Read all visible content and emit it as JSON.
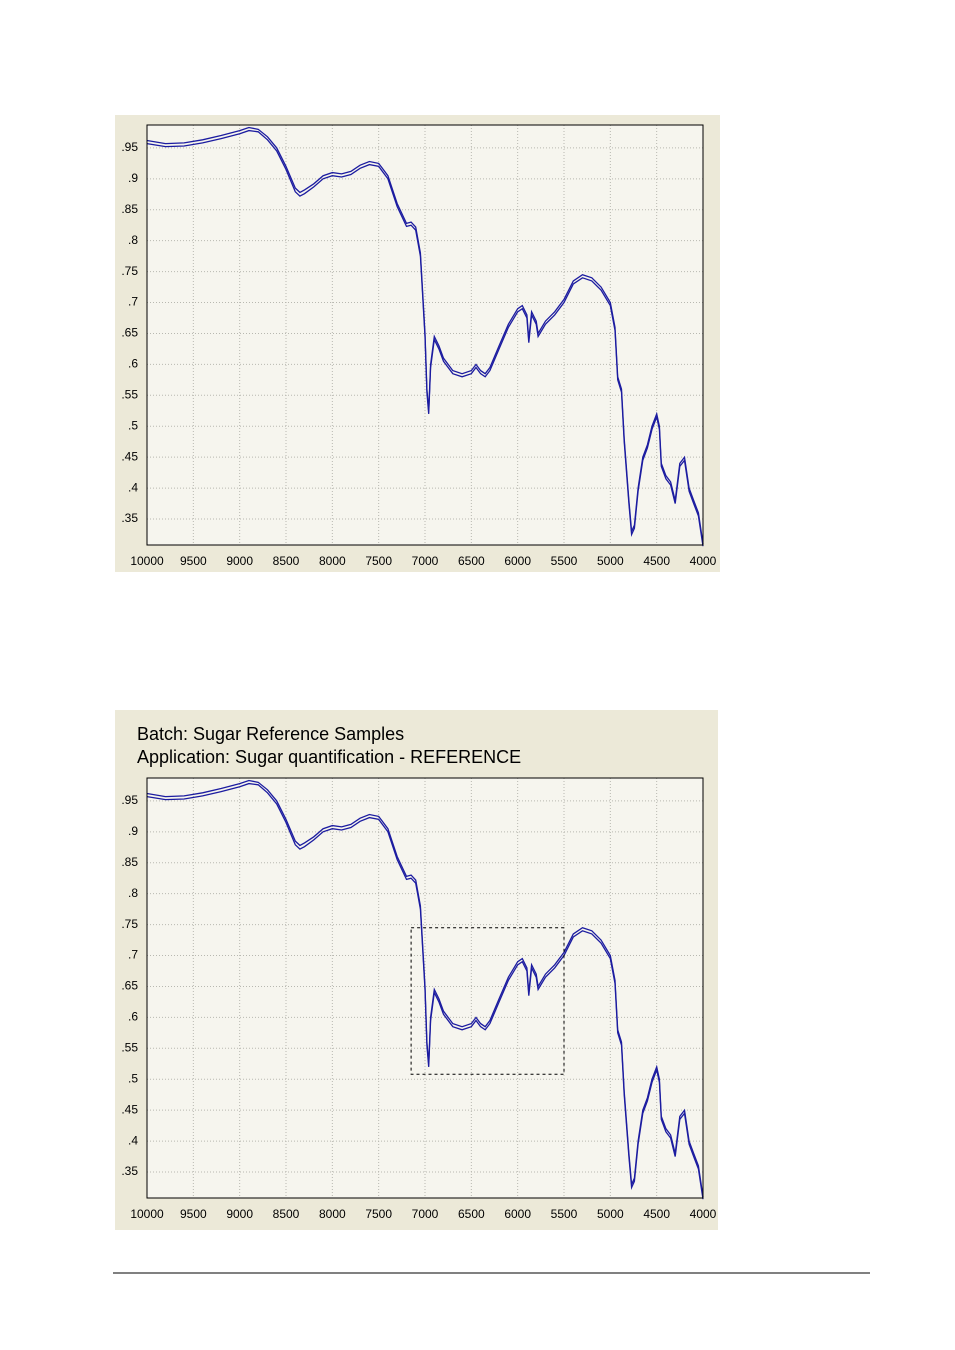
{
  "chart_data": [
    {
      "type": "line",
      "x": [
        10000,
        9800,
        9600,
        9400,
        9200,
        9000,
        8900,
        8800,
        8700,
        8600,
        8500,
        8400,
        8350,
        8300,
        8200,
        8100,
        8000,
        7900,
        7800,
        7700,
        7600,
        7500,
        7400,
        7300,
        7200,
        7150,
        7100,
        7050,
        7000,
        6980,
        6960,
        6940,
        6900,
        6850,
        6800,
        6700,
        6600,
        6500,
        6450,
        6400,
        6350,
        6300,
        6200,
        6100,
        6000,
        5950,
        5900,
        5880,
        5850,
        5800,
        5780,
        5700,
        5600,
        5500,
        5400,
        5300,
        5200,
        5100,
        5000,
        4950,
        4920,
        4880,
        4850,
        4800,
        4770,
        4740,
        4700,
        4650,
        4600,
        4550,
        4500,
        4470,
        4450,
        4400,
        4350,
        4300,
        4250,
        4200,
        4150,
        4100,
        4050,
        4000
      ],
      "series": [
        {
          "color": "#1c1ca0",
          "values": [
            0.962,
            0.957,
            0.958,
            0.963,
            0.97,
            0.978,
            0.983,
            0.98,
            0.968,
            0.95,
            0.92,
            0.885,
            0.878,
            0.882,
            0.892,
            0.905,
            0.91,
            0.908,
            0.912,
            0.922,
            0.928,
            0.925,
            0.905,
            0.86,
            0.828,
            0.83,
            0.822,
            0.78,
            0.65,
            0.56,
            0.525,
            0.6,
            0.645,
            0.63,
            0.61,
            0.59,
            0.585,
            0.59,
            0.6,
            0.59,
            0.585,
            0.595,
            0.63,
            0.665,
            0.69,
            0.695,
            0.68,
            0.64,
            0.685,
            0.67,
            0.65,
            0.67,
            0.685,
            0.705,
            0.735,
            0.745,
            0.74,
            0.725,
            0.7,
            0.66,
            0.58,
            0.56,
            0.48,
            0.38,
            0.33,
            0.34,
            0.4,
            0.45,
            0.47,
            0.5,
            0.52,
            0.5,
            0.44,
            0.42,
            0.41,
            0.38,
            0.44,
            0.45,
            0.4,
            0.38,
            0.36,
            0.31
          ]
        },
        {
          "color": "#1c1ca0",
          "values": [
            0.957,
            0.952,
            0.953,
            0.958,
            0.965,
            0.973,
            0.978,
            0.976,
            0.963,
            0.945,
            0.915,
            0.879,
            0.872,
            0.876,
            0.887,
            0.9,
            0.905,
            0.903,
            0.907,
            0.917,
            0.923,
            0.92,
            0.9,
            0.855,
            0.823,
            0.825,
            0.817,
            0.775,
            0.645,
            0.555,
            0.52,
            0.595,
            0.64,
            0.625,
            0.605,
            0.585,
            0.58,
            0.585,
            0.595,
            0.585,
            0.58,
            0.59,
            0.625,
            0.66,
            0.685,
            0.69,
            0.675,
            0.635,
            0.68,
            0.665,
            0.645,
            0.665,
            0.68,
            0.7,
            0.73,
            0.74,
            0.735,
            0.72,
            0.695,
            0.655,
            0.575,
            0.555,
            0.475,
            0.375,
            0.325,
            0.335,
            0.395,
            0.445,
            0.465,
            0.495,
            0.515,
            0.495,
            0.435,
            0.415,
            0.405,
            0.375,
            0.435,
            0.445,
            0.395,
            0.375,
            0.355,
            0.306
          ]
        }
      ],
      "xlim": [
        10000,
        4000
      ],
      "xticks": [
        10000,
        9500,
        9000,
        8500,
        8000,
        7500,
        7000,
        6500,
        6000,
        5500,
        5000,
        4500,
        4000
      ],
      "ylim": [
        0.308,
        0.987
      ],
      "yticks": [
        {
          "value": 0.35,
          "label": ".35"
        },
        {
          "value": 0.4,
          "label": ".4"
        },
        {
          "value": 0.45,
          "label": ".45"
        },
        {
          "value": 0.5,
          "label": ".5"
        },
        {
          "value": 0.55,
          "label": ".55"
        },
        {
          "value": 0.6,
          "label": ".6"
        },
        {
          "value": 0.65,
          "label": ".65"
        },
        {
          "value": 0.7,
          "label": ".7"
        },
        {
          "value": 0.75,
          "label": ".75"
        },
        {
          "value": 0.8,
          "label": ".8"
        },
        {
          "value": 0.85,
          "label": ".85"
        },
        {
          "value": 0.9,
          "label": ".9"
        },
        {
          "value": 0.95,
          "label": ".95"
        }
      ],
      "grid": true
    },
    {
      "type": "line",
      "title": "Batch: Sugar Reference Samples",
      "subtitle": "Application: Sugar quantification - REFERENCE",
      "x": [
        10000,
        9800,
        9600,
        9400,
        9200,
        9000,
        8900,
        8800,
        8700,
        8600,
        8500,
        8400,
        8350,
        8300,
        8200,
        8100,
        8000,
        7900,
        7800,
        7700,
        7600,
        7500,
        7400,
        7300,
        7200,
        7150,
        7100,
        7050,
        7000,
        6980,
        6960,
        6940,
        6900,
        6850,
        6800,
        6700,
        6600,
        6500,
        6450,
        6400,
        6350,
        6300,
        6200,
        6100,
        6000,
        5950,
        5900,
        5880,
        5850,
        5800,
        5780,
        5700,
        5600,
        5500,
        5400,
        5300,
        5200,
        5100,
        5000,
        4950,
        4920,
        4880,
        4850,
        4800,
        4770,
        4740,
        4700,
        4650,
        4600,
        4550,
        4500,
        4470,
        4450,
        4400,
        4350,
        4300,
        4250,
        4200,
        4150,
        4100,
        4050,
        4000
      ],
      "series": [
        {
          "color": "#1c1ca0",
          "values": [
            0.962,
            0.957,
            0.958,
            0.963,
            0.97,
            0.978,
            0.983,
            0.98,
            0.968,
            0.95,
            0.92,
            0.885,
            0.878,
            0.882,
            0.892,
            0.905,
            0.91,
            0.908,
            0.912,
            0.922,
            0.928,
            0.925,
            0.905,
            0.86,
            0.828,
            0.83,
            0.822,
            0.78,
            0.65,
            0.56,
            0.525,
            0.6,
            0.645,
            0.63,
            0.61,
            0.59,
            0.585,
            0.59,
            0.6,
            0.59,
            0.585,
            0.595,
            0.63,
            0.665,
            0.69,
            0.695,
            0.68,
            0.64,
            0.685,
            0.67,
            0.65,
            0.67,
            0.685,
            0.705,
            0.735,
            0.745,
            0.74,
            0.725,
            0.7,
            0.66,
            0.58,
            0.56,
            0.48,
            0.38,
            0.33,
            0.34,
            0.4,
            0.45,
            0.47,
            0.5,
            0.52,
            0.5,
            0.44,
            0.42,
            0.41,
            0.38,
            0.44,
            0.45,
            0.4,
            0.38,
            0.36,
            0.31
          ]
        },
        {
          "color": "#1c1ca0",
          "values": [
            0.957,
            0.952,
            0.953,
            0.958,
            0.965,
            0.973,
            0.978,
            0.976,
            0.963,
            0.945,
            0.915,
            0.879,
            0.872,
            0.876,
            0.887,
            0.9,
            0.905,
            0.903,
            0.907,
            0.917,
            0.923,
            0.92,
            0.9,
            0.855,
            0.823,
            0.825,
            0.817,
            0.775,
            0.645,
            0.555,
            0.52,
            0.595,
            0.64,
            0.625,
            0.605,
            0.585,
            0.58,
            0.585,
            0.595,
            0.585,
            0.58,
            0.59,
            0.625,
            0.66,
            0.685,
            0.69,
            0.675,
            0.635,
            0.68,
            0.665,
            0.645,
            0.665,
            0.68,
            0.7,
            0.73,
            0.74,
            0.735,
            0.72,
            0.695,
            0.655,
            0.575,
            0.555,
            0.475,
            0.375,
            0.325,
            0.335,
            0.395,
            0.445,
            0.465,
            0.495,
            0.515,
            0.495,
            0.435,
            0.415,
            0.405,
            0.375,
            0.435,
            0.445,
            0.395,
            0.375,
            0.355,
            0.306
          ]
        }
      ],
      "xlim": [
        10000,
        4000
      ],
      "xticks": [
        10000,
        9500,
        9000,
        8500,
        8000,
        7500,
        7000,
        6500,
        6000,
        5500,
        5000,
        4500,
        4000
      ],
      "ylim": [
        0.308,
        0.987
      ],
      "yticks": [
        {
          "value": 0.35,
          "label": ".35"
        },
        {
          "value": 0.4,
          "label": ".4"
        },
        {
          "value": 0.45,
          "label": ".45"
        },
        {
          "value": 0.5,
          "label": ".5"
        },
        {
          "value": 0.55,
          "label": ".55"
        },
        {
          "value": 0.6,
          "label": ".6"
        },
        {
          "value": 0.65,
          "label": ".65"
        },
        {
          "value": 0.7,
          "label": ".7"
        },
        {
          "value": 0.75,
          "label": ".75"
        },
        {
          "value": 0.8,
          "label": ".8"
        },
        {
          "value": 0.85,
          "label": ".85"
        },
        {
          "value": 0.9,
          "label": ".9"
        },
        {
          "value": 0.95,
          "label": ".95"
        }
      ],
      "grid": true,
      "highlight_box": {
        "x": [
          7150,
          5500
        ],
        "y": [
          0.508,
          0.745
        ]
      }
    }
  ]
}
